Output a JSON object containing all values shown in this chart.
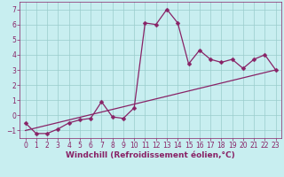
{
  "xlabel": "Windchill (Refroidissement éolien,°C)",
  "xlim": [
    -0.5,
    23.5
  ],
  "ylim": [
    -1.5,
    7.5
  ],
  "xticks": [
    0,
    1,
    2,
    3,
    4,
    5,
    6,
    7,
    8,
    9,
    10,
    11,
    12,
    13,
    14,
    15,
    16,
    17,
    18,
    19,
    20,
    21,
    22,
    23
  ],
  "yticks": [
    -1,
    0,
    1,
    2,
    3,
    4,
    5,
    6,
    7
  ],
  "data_x": [
    0,
    1,
    2,
    3,
    4,
    5,
    6,
    7,
    8,
    9,
    10,
    11,
    12,
    13,
    14,
    15,
    16,
    17,
    18,
    19,
    20,
    21,
    22,
    23
  ],
  "data_y": [
    -0.5,
    -1.2,
    -1.2,
    -0.9,
    -0.5,
    -0.3,
    -0.2,
    0.9,
    -0.1,
    -0.2,
    0.5,
    6.1,
    6.0,
    7.0,
    6.1,
    3.4,
    4.3,
    3.7,
    3.5,
    3.7,
    3.1,
    3.7,
    4.0,
    3.0
  ],
  "trend_x": [
    0,
    23
  ],
  "trend_y": [
    -1.0,
    3.0
  ],
  "line_color": "#882266",
  "bg_color": "#c8eef0",
  "grid_color": "#99cccc",
  "tick_fontsize": 5.5,
  "xlabel_fontsize": 6.5,
  "marker_size": 2.5,
  "line_width": 0.9
}
